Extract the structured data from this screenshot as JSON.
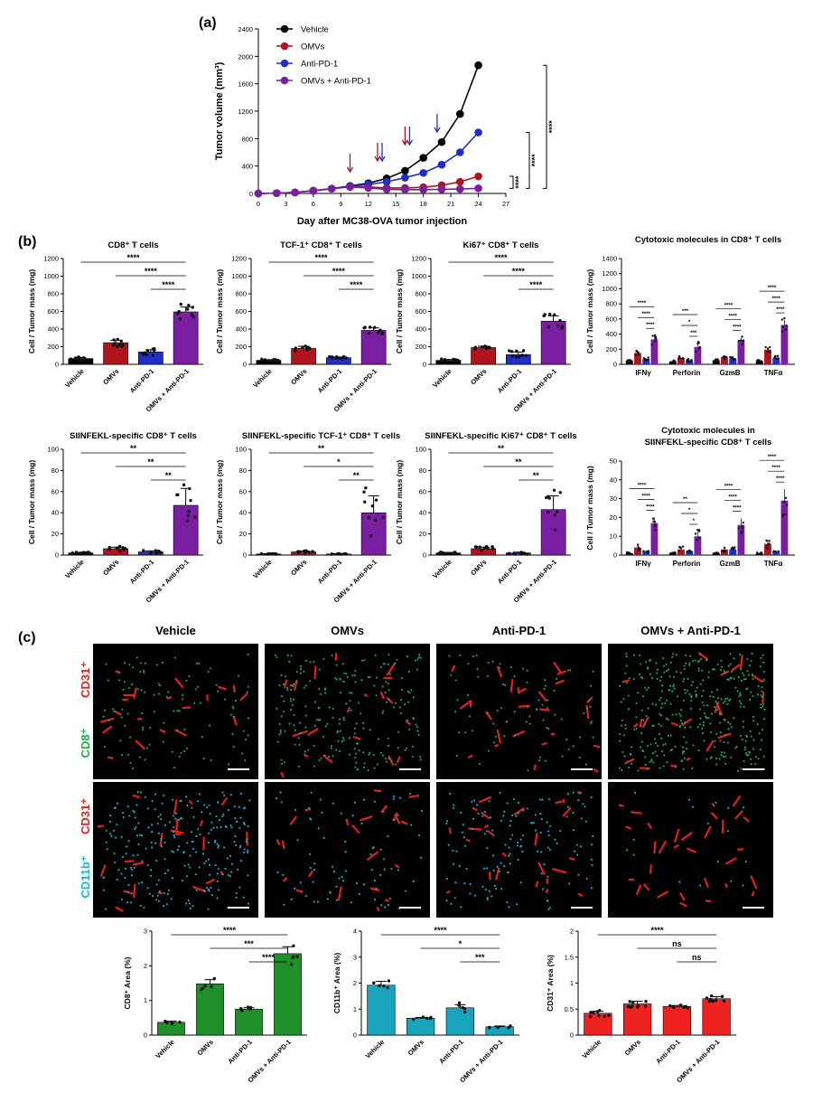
{
  "panel_labels": {
    "a": "(a)",
    "b": "(b)",
    "c": "(c)"
  },
  "colors": {
    "vehicle": "#000000",
    "omvs": "#b0141c",
    "anti_pd1": "#1f2ec8",
    "combo": "#7b1fa2",
    "cd31": "#e32020",
    "cd8": "#1db34a",
    "cd11b": "#18b9d6",
    "c_cd8": "#1f8f2a",
    "c_cd11b": "#1aa3bd",
    "c_cd31": "#ef2222"
  },
  "groups": [
    "Vehicle",
    "OMVs",
    "Anti-PD-1",
    "OMVs + Anti-PD-1"
  ],
  "molecules": [
    "IFNγ",
    "Perforin",
    "GzmB",
    "TNFα"
  ],
  "images": {
    "titles": [
      "Vehicle",
      "OMVs",
      "Anti-PD-1",
      "OMVs + Anti-PD-1"
    ],
    "row1_channels": [
      "CD31⁺",
      "CD8⁺"
    ],
    "row2_channels": [
      "CD31⁺",
      "CD11b⁺"
    ]
  },
  "chart_data": [
    {
      "type": "line",
      "id": "tumor_growth",
      "title": "",
      "xlabel": "Day after MC38-OVA tumor injection",
      "ylabel": "Tumor volume (mm³)",
      "x": [
        0,
        2,
        4,
        6,
        8,
        10,
        12,
        14,
        16,
        18,
        20,
        22,
        24
      ],
      "xticks": [
        0,
        3,
        6,
        9,
        12,
        15,
        18,
        21,
        24,
        27
      ],
      "yticks": [
        0,
        400,
        800,
        1200,
        1600,
        2000,
        2400
      ],
      "xlim": [
        0,
        27
      ],
      "ylim": [
        0,
        2400
      ],
      "legend_position": "top-left",
      "series": [
        {
          "name": "Vehicle",
          "values": [
            0,
            5,
            15,
            40,
            70,
            110,
            150,
            220,
            330,
            520,
            750,
            1160,
            1870
          ]
        },
        {
          "name": "OMVs",
          "values": [
            0,
            5,
            15,
            40,
            70,
            100,
            95,
            80,
            80,
            90,
            120,
            170,
            250
          ]
        },
        {
          "name": "Anti-PD-1",
          "values": [
            0,
            5,
            15,
            40,
            70,
            105,
            130,
            170,
            230,
            300,
            420,
            600,
            890
          ]
        },
        {
          "name": "OMVs + Anti-PD-1",
          "values": [
            0,
            5,
            15,
            40,
            70,
            95,
            80,
            60,
            55,
            55,
            60,
            65,
            75
          ]
        }
      ],
      "arrows": [
        {
          "day": 10,
          "group": "OMVs"
        },
        {
          "day": 13,
          "group": "OMVs"
        },
        {
          "day": 13.5,
          "group": "Anti-PD-1"
        },
        {
          "day": 16,
          "group": "OMVs"
        },
        {
          "day": 16.5,
          "group": "Anti-PD-1"
        },
        {
          "day": 19.5,
          "group": "Anti-PD-1"
        }
      ],
      "significance": [
        "****",
        "****",
        "****"
      ]
    },
    {
      "type": "bar",
      "id": "cd8",
      "title": "CD8⁺ T cells",
      "ylabel": "Cell / Tumor mass (mg)",
      "categories": [
        "Vehicle",
        "OMVs",
        "Anti-PD-1",
        "OMVs + Anti-PD-1"
      ],
      "values": [
        65,
        245,
        140,
        595
      ],
      "errors": [
        12,
        28,
        25,
        55
      ],
      "ylim": [
        0,
        1200
      ],
      "yticks": [
        0,
        200,
        400,
        600,
        800,
        1000,
        1200
      ],
      "significance": [
        {
          "from": 0,
          "to": 3,
          "label": "****"
        },
        {
          "from": 1,
          "to": 3,
          "label": "****"
        },
        {
          "from": 2,
          "to": 3,
          "label": "****"
        }
      ]
    },
    {
      "type": "bar",
      "id": "tcf1_cd8",
      "title": "TCF-1⁺ CD8⁺ T cells",
      "ylabel": "Cell / Tumor mass (mg)",
      "categories": [
        "Vehicle",
        "OMVs",
        "Anti-PD-1",
        "OMVs + Anti-PD-1"
      ],
      "values": [
        45,
        180,
        75,
        385
      ],
      "errors": [
        8,
        25,
        8,
        28
      ],
      "ylim": [
        0,
        1200
      ],
      "yticks": [
        0,
        200,
        400,
        600,
        800,
        1000,
        1200
      ],
      "significance": [
        {
          "from": 0,
          "to": 3,
          "label": "****"
        },
        {
          "from": 1,
          "to": 3,
          "label": "****"
        },
        {
          "from": 2,
          "to": 3,
          "label": "****"
        }
      ]
    },
    {
      "type": "bar",
      "id": "ki67_cd8",
      "title": "Ki67⁺ CD8⁺ T cells",
      "ylabel": "Cell / Tumor mass (mg)",
      "categories": [
        "Vehicle",
        "OMVs",
        "Anti-PD-1",
        "OMVs + Anti-PD-1"
      ],
      "values": [
        45,
        190,
        110,
        490
      ],
      "errors": [
        10,
        15,
        30,
        60
      ],
      "ylim": [
        0,
        1200
      ],
      "yticks": [
        0,
        200,
        400,
        600,
        800,
        1000,
        1200
      ],
      "significance": [
        {
          "from": 0,
          "to": 3,
          "label": "****"
        },
        {
          "from": 1,
          "to": 3,
          "label": "****"
        },
        {
          "from": 2,
          "to": 3,
          "label": "****"
        }
      ]
    },
    {
      "type": "bar",
      "id": "cytotoxic_cd8",
      "title": "Cytotoxic molecules in CD8⁺ T cells",
      "ylabel": "Cell / Tumor mass (mg)",
      "categories": [
        "IFNγ",
        "Perforin",
        "GzmB",
        "TNFα"
      ],
      "series": [
        {
          "name": "Vehicle",
          "values": [
            50,
            40,
            55,
            45
          ],
          "errors": [
            8,
            8,
            8,
            8
          ]
        },
        {
          "name": "OMVs",
          "values": [
            150,
            85,
            95,
            195
          ],
          "errors": [
            25,
            15,
            15,
            30
          ]
        },
        {
          "name": "Anti-PD-1",
          "values": [
            70,
            50,
            80,
            90
          ],
          "errors": [
            15,
            12,
            15,
            15
          ]
        },
        {
          "name": "OMVs + Anti-PD-1",
          "values": [
            330,
            230,
            310,
            520
          ],
          "errors": [
            50,
            45,
            45,
            65
          ]
        }
      ],
      "ylim": [
        0,
        1400
      ],
      "yticks": [
        0,
        200,
        400,
        600,
        800,
        1000,
        1200,
        1400
      ],
      "significance": [
        [
          "****",
          "****",
          "****"
        ],
        [
          "***",
          "*",
          "***"
        ],
        [
          "****",
          "****",
          "****"
        ],
        [
          "****",
          "****",
          "****"
        ]
      ]
    },
    {
      "type": "bar",
      "id": "siinfekl_cd8",
      "title": "SIINFEKL-specific CD8⁺ T cells",
      "ylabel": "Cell / Tumor mass (mg)",
      "categories": [
        "Vehicle",
        "OMVs",
        "Anti-PD-1",
        "OMVs + Anti-PD-1"
      ],
      "values": [
        2,
        6,
        3,
        47
      ],
      "errors": [
        0.5,
        1.5,
        1,
        16
      ],
      "ylim": [
        0,
        100
      ],
      "yticks": [
        0,
        20,
        40,
        60,
        80,
        100
      ],
      "significance": [
        {
          "from": 0,
          "to": 3,
          "label": "**"
        },
        {
          "from": 1,
          "to": 3,
          "label": "**"
        },
        {
          "from": 2,
          "to": 3,
          "label": "**"
        }
      ]
    },
    {
      "type": "bar",
      "id": "siinfekl_tcf1",
      "title": "SIINFEKL-specific TCF-1⁺ CD8⁺ T cells",
      "ylabel": "Cell / Tumor mass (mg)",
      "categories": [
        "Vehicle",
        "OMVs",
        "Anti-PD-1",
        "OMVs + Anti-PD-1"
      ],
      "values": [
        1,
        3,
        1,
        40
      ],
      "errors": [
        0.3,
        0.8,
        0.3,
        16
      ],
      "ylim": [
        0,
        100
      ],
      "yticks": [
        0,
        20,
        40,
        60,
        80,
        100
      ],
      "significance": [
        {
          "from": 0,
          "to": 3,
          "label": "**"
        },
        {
          "from": 1,
          "to": 3,
          "label": "*"
        },
        {
          "from": 2,
          "to": 3,
          "label": "**"
        }
      ]
    },
    {
      "type": "bar",
      "id": "siinfekl_ki67",
      "title": "SIINFEKL-specific Ki67⁺ CD8⁺ T cells",
      "ylabel": "Cell / Tumor mass (mg)",
      "categories": [
        "Vehicle",
        "OMVs",
        "Anti-PD-1",
        "OMVs + Anti-PD-1"
      ],
      "values": [
        2,
        6,
        2,
        43
      ],
      "errors": [
        0.5,
        1.5,
        0.8,
        13
      ],
      "ylim": [
        0,
        100
      ],
      "yticks": [
        0,
        20,
        40,
        60,
        80,
        100
      ],
      "significance": [
        {
          "from": 0,
          "to": 3,
          "label": "**"
        },
        {
          "from": 1,
          "to": 3,
          "label": "**"
        },
        {
          "from": 2,
          "to": 3,
          "label": "**"
        }
      ]
    },
    {
      "type": "bar",
      "id": "cytotoxic_siinfekl",
      "title": "Cytotoxic molecules in SIINFEKL-specific CD8⁺ T cells",
      "ylabel": "Cell / Tumor mass (mg)",
      "categories": [
        "IFNγ",
        "Perforin",
        "GzmB",
        "TNFα"
      ],
      "series": [
        {
          "name": "Vehicle",
          "values": [
            1,
            1,
            1,
            1
          ],
          "errors": [
            0.3,
            0.3,
            0.3,
            0.3
          ]
        },
        {
          "name": "OMVs",
          "values": [
            4,
            3,
            3,
            6
          ],
          "errors": [
            1,
            1,
            1,
            2
          ]
        },
        {
          "name": "Anti-PD-1",
          "values": [
            2,
            2,
            3,
            2
          ],
          "errors": [
            0.5,
            0.5,
            0.8,
            0.5
          ]
        },
        {
          "name": "OMVs + Anti-PD-1",
          "values": [
            17,
            10,
            16,
            29
          ],
          "errors": [
            3,
            2.5,
            3.5,
            6
          ]
        }
      ],
      "ylim": [
        0,
        50
      ],
      "yticks": [
        0,
        10,
        20,
        30,
        40,
        50
      ],
      "significance": [
        [
          "****",
          "****",
          "****"
        ],
        [
          "**",
          "*",
          "*"
        ],
        [
          "****",
          "****",
          "****"
        ],
        [
          "****",
          "****",
          "****"
        ]
      ]
    },
    {
      "type": "bar",
      "id": "cd8_area",
      "title": "",
      "ylabel": "CD8⁺ Area (%)",
      "categories": [
        "Vehicle",
        "OMVs",
        "Anti-PD-1",
        "OMVs + Anti-PD-1"
      ],
      "values": [
        0.37,
        1.48,
        0.75,
        2.35
      ],
      "errors": [
        0.03,
        0.12,
        0.04,
        0.2
      ],
      "ylim": [
        0,
        3
      ],
      "yticks": [
        0,
        1,
        2,
        3
      ],
      "significance": [
        {
          "from": 0,
          "to": 3,
          "label": "****"
        },
        {
          "from": 1,
          "to": 3,
          "label": "***"
        },
        {
          "from": 2,
          "to": 3,
          "label": "****"
        }
      ]
    },
    {
      "type": "bar",
      "id": "cd11b_area",
      "title": "",
      "ylabel": "CD11b⁺ Area (%)",
      "categories": [
        "Vehicle",
        "OMVs",
        "Anti-PD-1",
        "OMVs + Anti-PD-1"
      ],
      "values": [
        1.92,
        0.65,
        1.05,
        0.32
      ],
      "errors": [
        0.15,
        0.03,
        0.12,
        0.03
      ],
      "ylim": [
        0,
        4
      ],
      "yticks": [
        0,
        1,
        2,
        3,
        4
      ],
      "significance": [
        {
          "from": 0,
          "to": 3,
          "label": "****"
        },
        {
          "from": 1,
          "to": 3,
          "label": "*"
        },
        {
          "from": 2,
          "to": 3,
          "label": "***"
        }
      ]
    },
    {
      "type": "bar",
      "id": "cd31_area",
      "title": "",
      "ylabel": "CD31⁺ Area (%)",
      "categories": [
        "Vehicle",
        "OMVs",
        "Anti-PD-1",
        "OMVs + Anti-PD-1"
      ],
      "values": [
        0.42,
        0.6,
        0.55,
        0.7
      ],
      "errors": [
        0.04,
        0.05,
        0.02,
        0.04
      ],
      "ylim": [
        0,
        2.0
      ],
      "yticks": [
        0.0,
        0.5,
        1.0,
        1.5,
        2.0
      ],
      "significance": [
        {
          "from": 0,
          "to": 3,
          "label": "****"
        },
        {
          "from": 1,
          "to": 3,
          "label": "ns"
        },
        {
          "from": 2,
          "to": 3,
          "label": "ns"
        }
      ]
    }
  ]
}
